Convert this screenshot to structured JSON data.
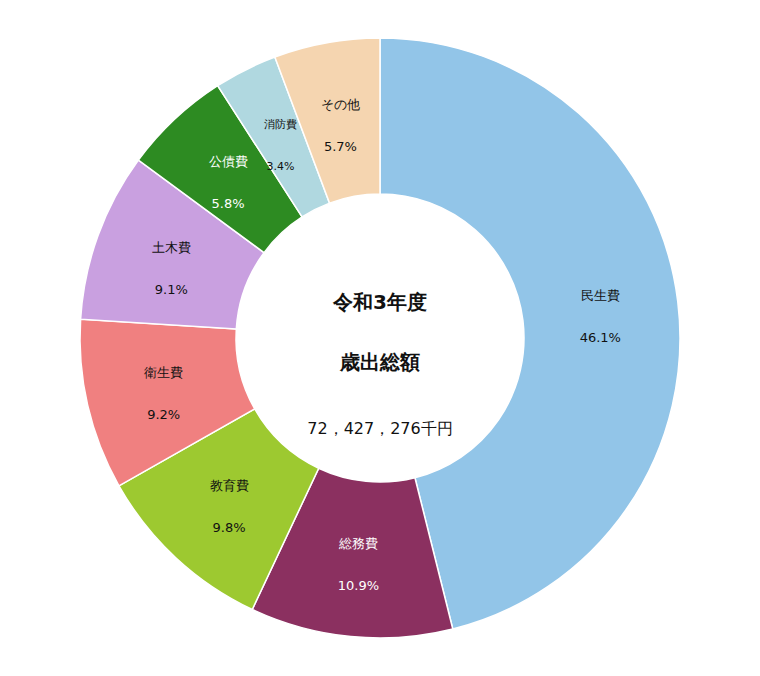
{
  "chart_data": {
    "type": "donut",
    "categories": [
      "民生費",
      "総務費",
      "教育費",
      "衛生費",
      "土木費",
      "公債費",
      "消防費",
      "その他"
    ],
    "values": [
      46.1,
      10.9,
      9.8,
      9.2,
      9.1,
      5.8,
      3.4,
      5.7
    ],
    "value_labels": [
      "46.1%",
      "10.9%",
      "9.8%",
      "9.2%",
      "9.1%",
      "5.8%",
      "3.4%",
      "5.7%"
    ],
    "colors": [
      "#92C5E8",
      "#8B3060",
      "#9DC930",
      "#F08080",
      "#C9A0E0",
      "#2D8B22",
      "#B0D8E0",
      "#F5D5B0"
    ],
    "data_labels": true,
    "annotations": [
      "令和3年度",
      "歳出総額",
      "72，427，276千円"
    ]
  }
}
